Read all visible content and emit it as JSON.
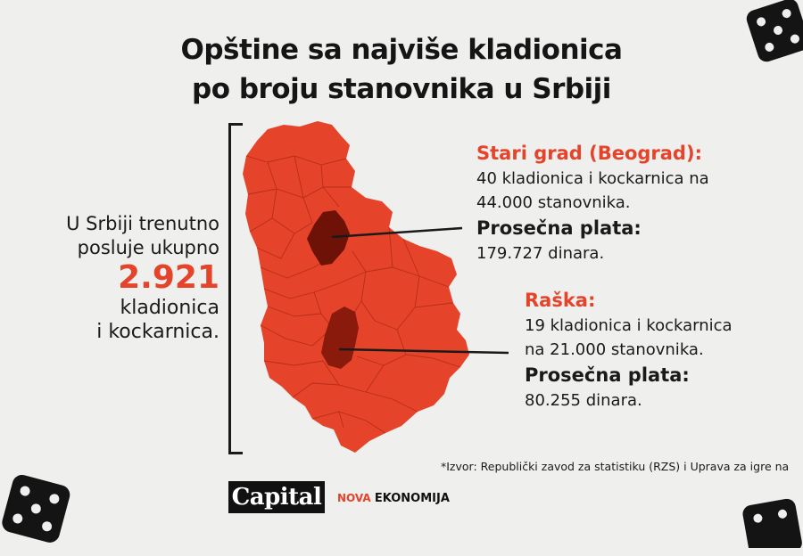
{
  "title": {
    "line1": "Opštine sa najviše kladionica",
    "line2": "po broju stanovnika u Srbiji"
  },
  "left": {
    "line1": "U Srbiji trenutno",
    "line2": "posluje ukupno",
    "number": "2.921",
    "line3": "kladionica",
    "line4": "i kockarnica."
  },
  "callout_stari_grad": {
    "heading": "Stari grad (Beograd):",
    "line1": "40 kladionica i kockarnica na",
    "line2": "44.000 stanovnika.",
    "salary_label": "Prosečna plata:",
    "salary_value": "179.727 dinara."
  },
  "callout_raska": {
    "heading": "Raška:",
    "line1": "19 kladionica i kockarnica",
    "line2": "na 21.000 stanovnika.",
    "salary_label": "Prosečna plata:",
    "salary_value": "80.255 dinara."
  },
  "source": "*Izvor: Republički zavod za statistiku (RZS) i Uprava za igre na",
  "logos": {
    "capital": "Capital",
    "nova": "NOVA",
    "ekonomija": "EKONOMIJA"
  },
  "colors": {
    "map_fill": "#e5432a",
    "highlight": "#6e1208",
    "accent": "#e5432a",
    "background": "#efefed"
  }
}
